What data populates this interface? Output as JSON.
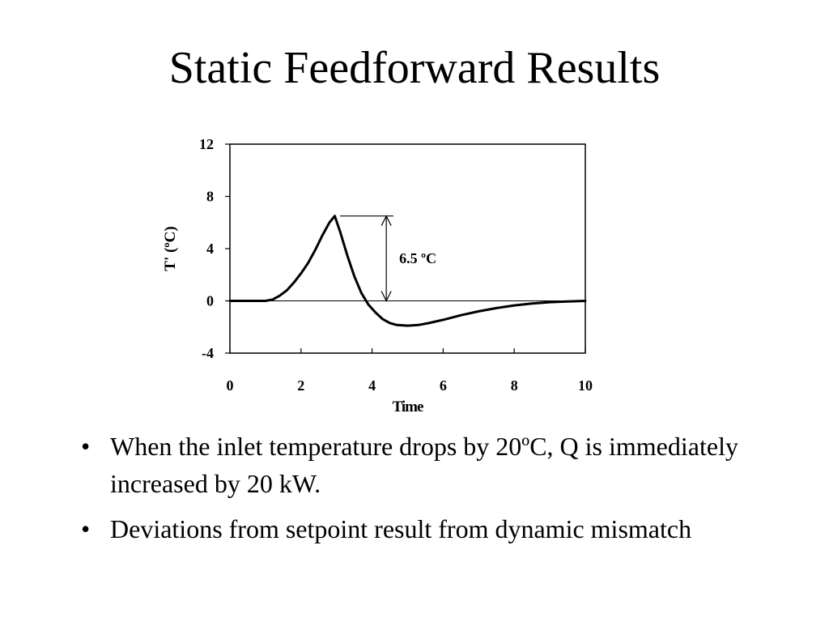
{
  "slide": {
    "title": "Static Feedforward Results",
    "bullets": [
      "When the inlet temperature drops by 20ºC, Q is immediately increased by 20 kW.",
      "Deviations from setpoint result from dynamic mismatch"
    ],
    "bullet_glyph": "•"
  },
  "chart_data": {
    "type": "line",
    "title": "",
    "xlabel": "Time",
    "ylabel": "T' (ºC)",
    "xlim": [
      0,
      10
    ],
    "ylim": [
      -4,
      12
    ],
    "xticks": [
      0,
      2,
      4,
      6,
      8,
      10
    ],
    "yticks": [
      -4,
      0,
      4,
      8,
      12
    ],
    "x_tick_labels": [
      "0",
      "2",
      "4",
      "6",
      "8",
      "10"
    ],
    "y_tick_labels": [
      "-4",
      "0",
      "4",
      "8",
      "12"
    ],
    "grid": false,
    "reference_line_y": 0,
    "series": [
      {
        "color": "#000000",
        "x": [
          0,
          0.5,
          1.0,
          1.2,
          1.4,
          1.6,
          1.8,
          2.0,
          2.2,
          2.4,
          2.6,
          2.8,
          2.95,
          3.1,
          3.3,
          3.5,
          3.7,
          3.9,
          4.1,
          4.3,
          4.5,
          4.7,
          5.0,
          5.3,
          5.6,
          6.0,
          6.5,
          7.0,
          7.5,
          8.0,
          8.5,
          9.0,
          9.5,
          10.0
        ],
        "y": [
          0,
          0,
          0,
          0.1,
          0.4,
          0.8,
          1.4,
          2.1,
          2.9,
          3.9,
          5.0,
          6.0,
          6.5,
          5.3,
          3.5,
          1.9,
          0.6,
          -0.3,
          -0.9,
          -1.4,
          -1.7,
          -1.85,
          -1.9,
          -1.85,
          -1.7,
          -1.45,
          -1.1,
          -0.8,
          -0.55,
          -0.35,
          -0.2,
          -0.1,
          -0.05,
          0
        ]
      }
    ],
    "annotation": {
      "text": "6.5 ºC",
      "from_y": 6.5,
      "to_y": 0,
      "x": 4.4,
      "tick_from_x": 3.1,
      "tick_to_x": 4.6
    }
  }
}
